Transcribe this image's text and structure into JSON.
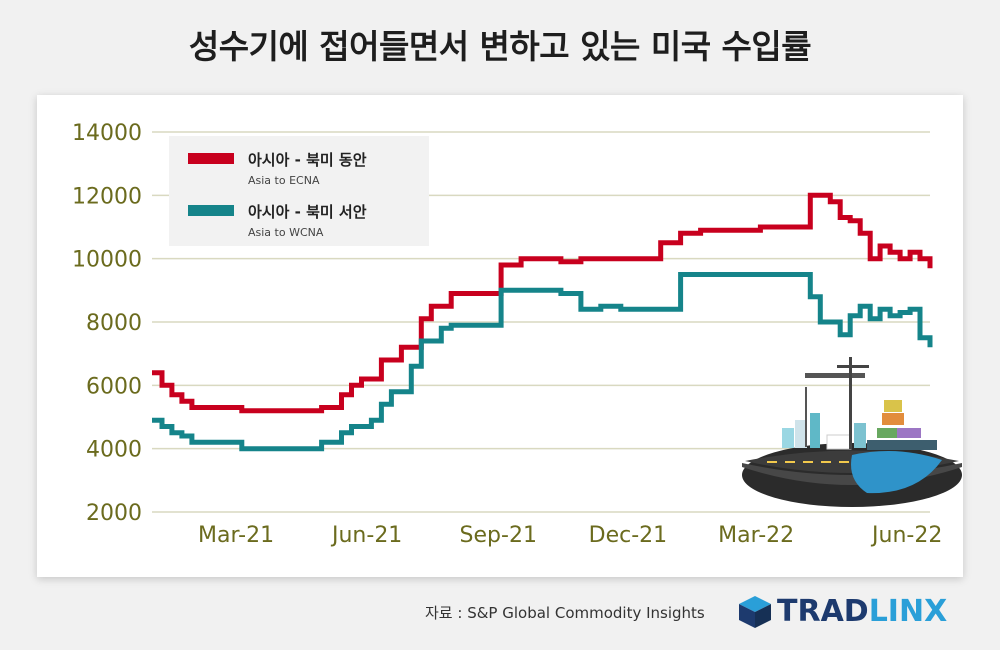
{
  "headline": "성수기에 접어들면서 변하고 있는 미국 수입률",
  "chart_data": {
    "type": "line",
    "x_ticks": [
      "Mar-21",
      "Jun-21",
      "Sep-21",
      "Dec-21",
      "Mar-22",
      "Jun-22"
    ],
    "ylim": [
      2000,
      14000
    ],
    "y_ticks": [
      "14000",
      "12000",
      "10000",
      "8000",
      "6000",
      "4000",
      "2000"
    ],
    "grid": true,
    "legend_position": "top-left",
    "series": [
      {
        "name": "아시아 - 북미 동안",
        "sub": "Asia to ECNA",
        "color": "#c8001e",
        "x": [
          "2021-01-01",
          "2021-01-08",
          "2021-01-15",
          "2021-01-22",
          "2021-01-29",
          "2021-02-05",
          "2021-02-19",
          "2021-03-05",
          "2021-03-19",
          "2021-04-02",
          "2021-04-16",
          "2021-04-30",
          "2021-05-14",
          "2021-05-21",
          "2021-05-28",
          "2021-06-04",
          "2021-06-11",
          "2021-06-18",
          "2021-06-25",
          "2021-07-02",
          "2021-07-09",
          "2021-07-16",
          "2021-07-23",
          "2021-07-30",
          "2021-08-06",
          "2021-08-20",
          "2021-09-03",
          "2021-09-17",
          "2021-10-01",
          "2021-10-15",
          "2021-10-29",
          "2021-11-12",
          "2021-11-26",
          "2021-12-10",
          "2021-12-24",
          "2022-01-07",
          "2022-01-21",
          "2022-02-04",
          "2022-02-18",
          "2022-03-04",
          "2022-03-11",
          "2022-03-18",
          "2022-03-25",
          "2022-04-08",
          "2022-04-15",
          "2022-04-22",
          "2022-04-29",
          "2022-05-06",
          "2022-05-13",
          "2022-05-20",
          "2022-05-27",
          "2022-06-03",
          "2022-06-10",
          "2022-06-17",
          "2022-06-24",
          "2022-07-01"
        ],
        "values": [
          6400,
          6000,
          5700,
          5500,
          5300,
          5300,
          5300,
          5200,
          5200,
          5200,
          5200,
          5300,
          5700,
          6000,
          6200,
          6200,
          6800,
          6800,
          7200,
          7200,
          8100,
          8500,
          8500,
          8900,
          8900,
          8900,
          9800,
          10000,
          10000,
          9900,
          10000,
          10000,
          10000,
          10000,
          10500,
          10800,
          10900,
          10900,
          10900,
          11000,
          11000,
          11000,
          11000,
          12000,
          12000,
          11800,
          11300,
          11200,
          10800,
          10000,
          10400,
          10200,
          10000,
          10200,
          10000,
          9700
        ]
      },
      {
        "name": "아시아 - 북미 서안",
        "sub": "Asia to WCNA",
        "color": "#15848a",
        "x": [
          "2021-01-01",
          "2021-01-08",
          "2021-01-15",
          "2021-01-22",
          "2021-01-29",
          "2021-02-05",
          "2021-02-19",
          "2021-03-05",
          "2021-03-19",
          "2021-04-02",
          "2021-04-16",
          "2021-04-30",
          "2021-05-14",
          "2021-05-21",
          "2021-05-28",
          "2021-06-04",
          "2021-06-11",
          "2021-06-18",
          "2021-06-25",
          "2021-07-02",
          "2021-07-09",
          "2021-07-16",
          "2021-07-23",
          "2021-07-30",
          "2021-08-06",
          "2021-08-20",
          "2021-09-03",
          "2021-09-17",
          "2021-10-01",
          "2021-10-15",
          "2021-10-29",
          "2021-11-12",
          "2021-11-26",
          "2021-12-10",
          "2021-12-24",
          "2022-01-07",
          "2022-01-21",
          "2022-02-04",
          "2022-02-18",
          "2022-03-04",
          "2022-03-11",
          "2022-03-18",
          "2022-03-25",
          "2022-04-08",
          "2022-04-15",
          "2022-04-22",
          "2022-04-29",
          "2022-05-06",
          "2022-05-13",
          "2022-05-20",
          "2022-05-27",
          "2022-06-03",
          "2022-06-10",
          "2022-06-17",
          "2022-06-24",
          "2022-07-01"
        ],
        "values": [
          4900,
          4700,
          4500,
          4400,
          4200,
          4200,
          4200,
          4000,
          4000,
          4000,
          4000,
          4200,
          4500,
          4700,
          4700,
          4900,
          5400,
          5800,
          5800,
          6600,
          7400,
          7400,
          7800,
          7900,
          7900,
          7900,
          9000,
          9000,
          9000,
          8900,
          8400,
          8500,
          8400,
          8400,
          8400,
          9500,
          9500,
          9500,
          9500,
          9500,
          9500,
          9500,
          9500,
          8800,
          8000,
          8000,
          7600,
          8200,
          8500,
          8100,
          8400,
          8200,
          8300,
          8400,
          7500,
          7200
        ]
      }
    ]
  },
  "source": "자료 : S&P Global Commodity Insights",
  "brand": {
    "part1": "TRAD",
    "part2": "LINX"
  }
}
